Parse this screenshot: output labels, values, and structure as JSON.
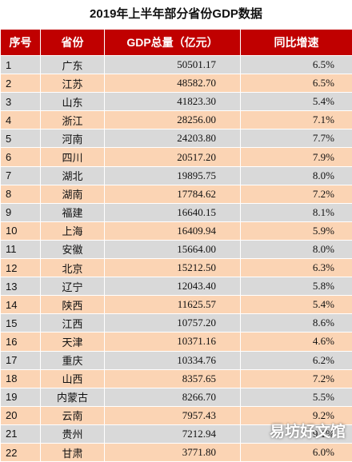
{
  "title": "2019年上半年部分省份GDP数据",
  "headers": [
    "序号",
    "省份",
    "GDP总量（亿元）",
    "同比增速"
  ],
  "rows": [
    [
      "1",
      "广东",
      "50501.17",
      "6.5%"
    ],
    [
      "2",
      "江苏",
      "48582.70",
      "6.5%"
    ],
    [
      "3",
      "山东",
      "41823.30",
      "5.4%"
    ],
    [
      "4",
      "浙江",
      "28256.00",
      "7.1%"
    ],
    [
      "5",
      "河南",
      "24203.80",
      "7.7%"
    ],
    [
      "6",
      "四川",
      "20517.20",
      "7.9%"
    ],
    [
      "7",
      "湖北",
      "19895.75",
      "8.0%"
    ],
    [
      "8",
      "湖南",
      "17784.62",
      "7.2%"
    ],
    [
      "9",
      "福建",
      "16640.15",
      "8.1%"
    ],
    [
      "10",
      "上海",
      "16409.94",
      "5.9%"
    ],
    [
      "11",
      "安徽",
      "15664.00",
      "8.0%"
    ],
    [
      "12",
      "北京",
      "15212.50",
      "6.3%"
    ],
    [
      "13",
      "辽宁",
      "12043.40",
      "5.8%"
    ],
    [
      "14",
      "陕西",
      "11625.57",
      "5.4%"
    ],
    [
      "15",
      "江西",
      "10757.20",
      "8.6%"
    ],
    [
      "16",
      "天津",
      "10371.16",
      "4.6%"
    ],
    [
      "17",
      "重庆",
      "10334.76",
      "6.2%"
    ],
    [
      "18",
      "山西",
      "8357.65",
      "7.2%"
    ],
    [
      "19",
      "内蒙古",
      "8266.70",
      "5.5%"
    ],
    [
      "20",
      "云南",
      "7957.43",
      "9.2%"
    ],
    [
      "21",
      "贵州",
      "7212.94",
      "9.1%"
    ],
    [
      "22",
      "甘肃",
      "3771.80",
      "6.0%"
    ]
  ],
  "colors": {
    "header_bg": "#c00000",
    "row_odd": "#d9d9d9",
    "row_even": "#fbd4b4"
  },
  "watermark": "易坊好文馆"
}
